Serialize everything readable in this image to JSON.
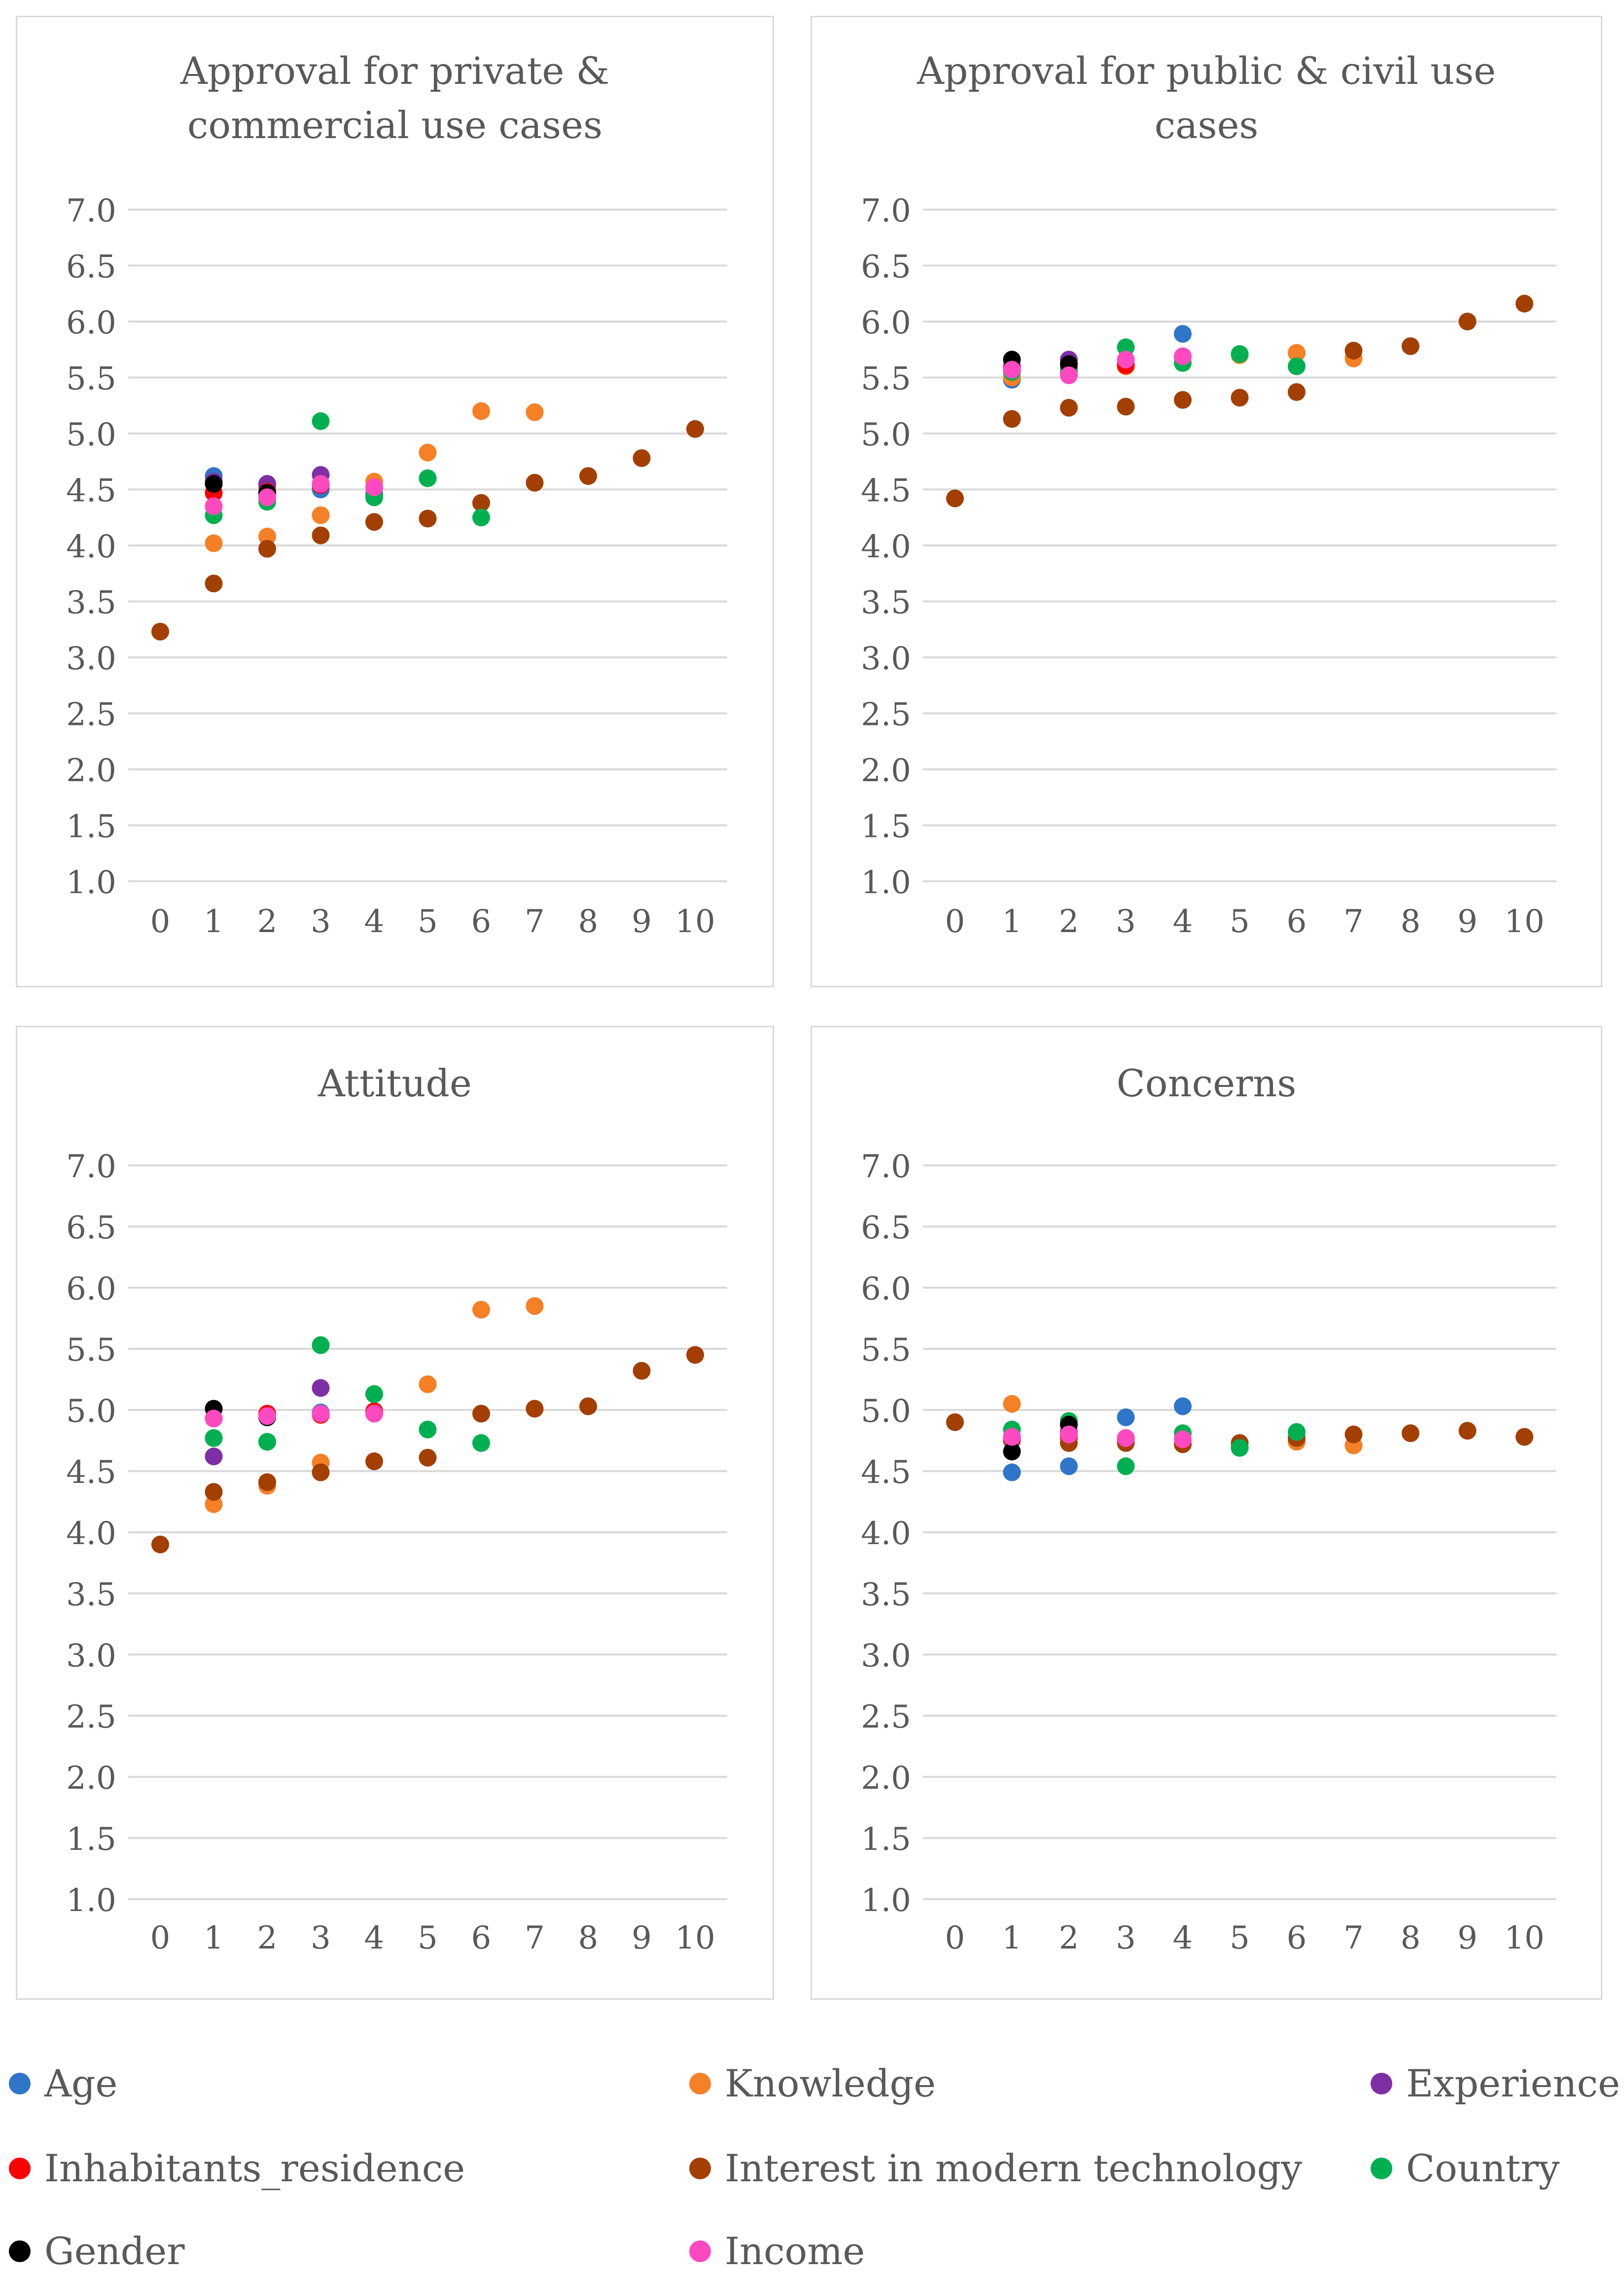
{
  "series_colors": {
    "Age": "#2F75C9",
    "Knowledge": "#F58025",
    "Experience": "#7E2FA5",
    "Inhabitants_residence": "#FF0000",
    "Interest in modern technology": "#A33F00",
    "Country": "#00B050",
    "Gender": "#000000",
    "Income": "#FF49C0"
  },
  "legend": {
    "items": [
      {
        "label": "Age",
        "color": "#2F75C9"
      },
      {
        "label": "Knowledge",
        "color": "#F58025"
      },
      {
        "label": "Experience",
        "color": "#7E2FA5"
      },
      {
        "label": "Inhabitants_residence",
        "color": "#FF0000"
      },
      {
        "label": "Interest in modern technology",
        "color": "#A33F00"
      },
      {
        "label": "Country",
        "color": "#00B050"
      },
      {
        "label": "Gender",
        "color": "#000000"
      },
      {
        "label": "Income",
        "color": "#FF49C0"
      }
    ]
  },
  "chart_data": [
    {
      "type": "scatter",
      "title_lines": [
        "Approval for private &",
        "commercial use cases"
      ],
      "ylim": [
        1.0,
        7.0
      ],
      "yticks": [
        "7.0",
        "6.5",
        "6.0",
        "5.5",
        "5.0",
        "4.5",
        "4.0",
        "3.5",
        "3.0",
        "2.5",
        "2.0",
        "1.5",
        "1.0"
      ],
      "xticks": [
        "0",
        "1",
        "2",
        "3",
        "4",
        "5",
        "6",
        "7",
        "8",
        "9",
        "10"
      ],
      "series": [
        {
          "name": "Age",
          "points": [
            [
              1,
              4.62
            ],
            [
              2,
              4.53
            ],
            [
              3,
              4.5
            ],
            [
              4,
              4.46
            ]
          ]
        },
        {
          "name": "Knowledge",
          "points": [
            [
              1,
              4.02
            ],
            [
              2,
              4.08
            ],
            [
              3,
              4.27
            ],
            [
              4,
              4.57
            ],
            [
              5,
              4.83
            ],
            [
              6,
              5.2
            ],
            [
              7,
              5.19
            ]
          ]
        },
        {
          "name": "Experience",
          "points": [
            [
              1,
              4.57
            ],
            [
              2,
              4.55
            ],
            [
              3,
              4.63
            ]
          ]
        },
        {
          "name": "Inhabitants_residence",
          "points": [
            [
              1,
              4.47
            ],
            [
              2,
              4.48
            ],
            [
              3,
              4.54
            ]
          ]
        },
        {
          "name": "Interest in modern technology",
          "points": [
            [
              0,
              3.23
            ],
            [
              1,
              3.66
            ],
            [
              2,
              3.97
            ],
            [
              3,
              4.09
            ],
            [
              4,
              4.21
            ],
            [
              5,
              4.24
            ],
            [
              6,
              4.38
            ],
            [
              7,
              4.56
            ],
            [
              8,
              4.62
            ],
            [
              9,
              4.78
            ],
            [
              10,
              5.04
            ]
          ]
        },
        {
          "name": "Country",
          "points": [
            [
              1,
              4.27
            ],
            [
              2,
              4.39
            ],
            [
              3,
              5.11
            ],
            [
              4,
              4.43
            ],
            [
              5,
              4.6
            ],
            [
              6,
              4.25
            ]
          ]
        },
        {
          "name": "Gender",
          "points": [
            [
              1,
              4.55
            ],
            [
              2,
              4.47
            ]
          ]
        },
        {
          "name": "Income",
          "points": [
            [
              1,
              4.35
            ],
            [
              2,
              4.43
            ],
            [
              3,
              4.55
            ],
            [
              4,
              4.52
            ]
          ]
        }
      ]
    },
    {
      "type": "scatter",
      "title_lines": [
        "Approval for public & civil use",
        "cases"
      ],
      "ylim": [
        1.0,
        7.0
      ],
      "yticks": [
        "7.0",
        "6.5",
        "6.0",
        "5.5",
        "5.0",
        "4.5",
        "4.0",
        "3.5",
        "3.0",
        "2.5",
        "2.0",
        "1.5",
        "1.0"
      ],
      "xticks": [
        "0",
        "1",
        "2",
        "3",
        "4",
        "5",
        "6",
        "7",
        "8",
        "9",
        "10"
      ],
      "series": [
        {
          "name": "Age",
          "points": [
            [
              1,
              5.48
            ],
            [
              2,
              5.55
            ],
            [
              3,
              5.63
            ],
            [
              4,
              5.89
            ]
          ]
        },
        {
          "name": "Knowledge",
          "points": [
            [
              1,
              5.5
            ],
            [
              2,
              5.53
            ],
            [
              3,
              5.6
            ],
            [
              4,
              5.68
            ],
            [
              5,
              5.7
            ],
            [
              6,
              5.72
            ],
            [
              7,
              5.67
            ]
          ]
        },
        {
          "name": "Experience",
          "points": [
            [
              1,
              5.6
            ],
            [
              2,
              5.66
            ]
          ]
        },
        {
          "name": "Inhabitants_residence",
          "points": [
            [
              1,
              5.58
            ],
            [
              2,
              5.58
            ],
            [
              3,
              5.61
            ]
          ]
        },
        {
          "name": "Interest in modern technology",
          "points": [
            [
              0,
              4.42
            ],
            [
              1,
              5.13
            ],
            [
              2,
              5.23
            ],
            [
              3,
              5.24
            ],
            [
              4,
              5.3
            ],
            [
              5,
              5.32
            ],
            [
              6,
              5.37
            ],
            [
              7,
              5.74
            ],
            [
              8,
              5.78
            ],
            [
              9,
              6.0
            ],
            [
              10,
              6.16
            ]
          ]
        },
        {
          "name": "Country",
          "points": [
            [
              1,
              5.55
            ],
            [
              2,
              5.57
            ],
            [
              3,
              5.77
            ],
            [
              4,
              5.63
            ],
            [
              5,
              5.71
            ],
            [
              6,
              5.6
            ]
          ]
        },
        {
          "name": "Gender",
          "points": [
            [
              1,
              5.66
            ],
            [
              2,
              5.62
            ]
          ]
        },
        {
          "name": "Income",
          "points": [
            [
              1,
              5.57
            ],
            [
              2,
              5.52
            ],
            [
              3,
              5.66
            ],
            [
              4,
              5.69
            ]
          ]
        }
      ]
    },
    {
      "type": "scatter",
      "title_lines": [
        "Attitude"
      ],
      "ylim": [
        1.0,
        7.0
      ],
      "yticks": [
        "7.0",
        "6.5",
        "6.0",
        "5.5",
        "5.0",
        "4.5",
        "4.0",
        "3.5",
        "3.0",
        "2.5",
        "2.0",
        "1.5",
        "1.0"
      ],
      "xticks": [
        "0",
        "1",
        "2",
        "3",
        "4",
        "5",
        "6",
        "7",
        "8",
        "9",
        "10"
      ],
      "series": [
        {
          "name": "Age",
          "points": [
            [
              1,
              4.77
            ],
            [
              2,
              4.74
            ],
            [
              3,
              4.98
            ],
            [
              4,
              4.98
            ]
          ]
        },
        {
          "name": "Knowledge",
          "points": [
            [
              1,
              4.23
            ],
            [
              2,
              4.38
            ],
            [
              3,
              4.57
            ],
            [
              4,
              5.13
            ],
            [
              5,
              5.21
            ],
            [
              6,
              5.82
            ],
            [
              7,
              5.85
            ]
          ]
        },
        {
          "name": "Experience",
          "points": [
            [
              1,
              4.62
            ],
            [
              2,
              4.95
            ],
            [
              3,
              5.18
            ]
          ]
        },
        {
          "name": "Inhabitants_residence",
          "points": [
            [
              1,
              4.93
            ],
            [
              2,
              4.97
            ],
            [
              3,
              4.96
            ],
            [
              4,
              4.99
            ]
          ]
        },
        {
          "name": "Interest in modern technology",
          "points": [
            [
              0,
              3.9
            ],
            [
              1,
              4.33
            ],
            [
              2,
              4.41
            ],
            [
              3,
              4.49
            ],
            [
              4,
              4.58
            ],
            [
              5,
              4.61
            ],
            [
              6,
              4.97
            ],
            [
              7,
              5.01
            ],
            [
              8,
              5.03
            ],
            [
              9,
              5.32
            ],
            [
              10,
              5.45
            ]
          ]
        },
        {
          "name": "Country",
          "points": [
            [
              1,
              4.77
            ],
            [
              2,
              4.74
            ],
            [
              3,
              5.53
            ],
            [
              4,
              5.13
            ],
            [
              5,
              4.84
            ],
            [
              6,
              4.73
            ]
          ]
        },
        {
          "name": "Gender",
          "points": [
            [
              1,
              5.01
            ],
            [
              2,
              4.94
            ]
          ]
        },
        {
          "name": "Income",
          "points": [
            [
              1,
              4.93
            ],
            [
              2,
              4.95
            ],
            [
              3,
              4.97
            ],
            [
              4,
              4.97
            ]
          ]
        }
      ]
    },
    {
      "type": "scatter",
      "title_lines": [
        "Concerns"
      ],
      "ylim": [
        1.0,
        7.0
      ],
      "yticks": [
        "7.0",
        "6.5",
        "6.0",
        "5.5",
        "5.0",
        "4.5",
        "4.0",
        "3.5",
        "3.0",
        "2.5",
        "2.0",
        "1.5",
        "1.0"
      ],
      "xticks": [
        "0",
        "1",
        "2",
        "3",
        "4",
        "5",
        "6",
        "7",
        "8",
        "9",
        "10"
      ],
      "series": [
        {
          "name": "Age",
          "points": [
            [
              1,
              4.49
            ],
            [
              2,
              4.54
            ],
            [
              3,
              4.94
            ],
            [
              4,
              5.03
            ]
          ]
        },
        {
          "name": "Knowledge",
          "points": [
            [
              1,
              5.05
            ],
            [
              2,
              4.77
            ],
            [
              3,
              4.76
            ],
            [
              4,
              4.72
            ],
            [
              5,
              4.7
            ],
            [
              6,
              4.74
            ],
            [
              7,
              4.71
            ]
          ]
        },
        {
          "name": "Experience",
          "points": [
            [
              1,
              4.75
            ],
            [
              2,
              4.82
            ]
          ]
        },
        {
          "name": "Inhabitants_residence",
          "points": [
            [
              1,
              4.78
            ],
            [
              2,
              4.78
            ],
            [
              3,
              4.77
            ]
          ]
        },
        {
          "name": "Interest in modern technology",
          "points": [
            [
              0,
              4.9
            ],
            [
              1,
              4.76
            ],
            [
              2,
              4.73
            ],
            [
              3,
              4.73
            ],
            [
              4,
              4.72
            ],
            [
              5,
              4.73
            ],
            [
              6,
              4.77
            ],
            [
              7,
              4.8
            ],
            [
              8,
              4.81
            ],
            [
              9,
              4.83
            ],
            [
              10,
              4.78
            ]
          ]
        },
        {
          "name": "Country",
          "points": [
            [
              1,
              4.84
            ],
            [
              2,
              4.91
            ],
            [
              3,
              4.54
            ],
            [
              4,
              4.81
            ],
            [
              5,
              4.69
            ],
            [
              6,
              4.82
            ]
          ]
        },
        {
          "name": "Gender",
          "points": [
            [
              1,
              4.66
            ],
            [
              2,
              4.88
            ]
          ]
        },
        {
          "name": "Income",
          "points": [
            [
              1,
              4.78
            ],
            [
              2,
              4.8
            ],
            [
              3,
              4.77
            ],
            [
              4,
              4.76
            ]
          ]
        }
      ]
    }
  ]
}
